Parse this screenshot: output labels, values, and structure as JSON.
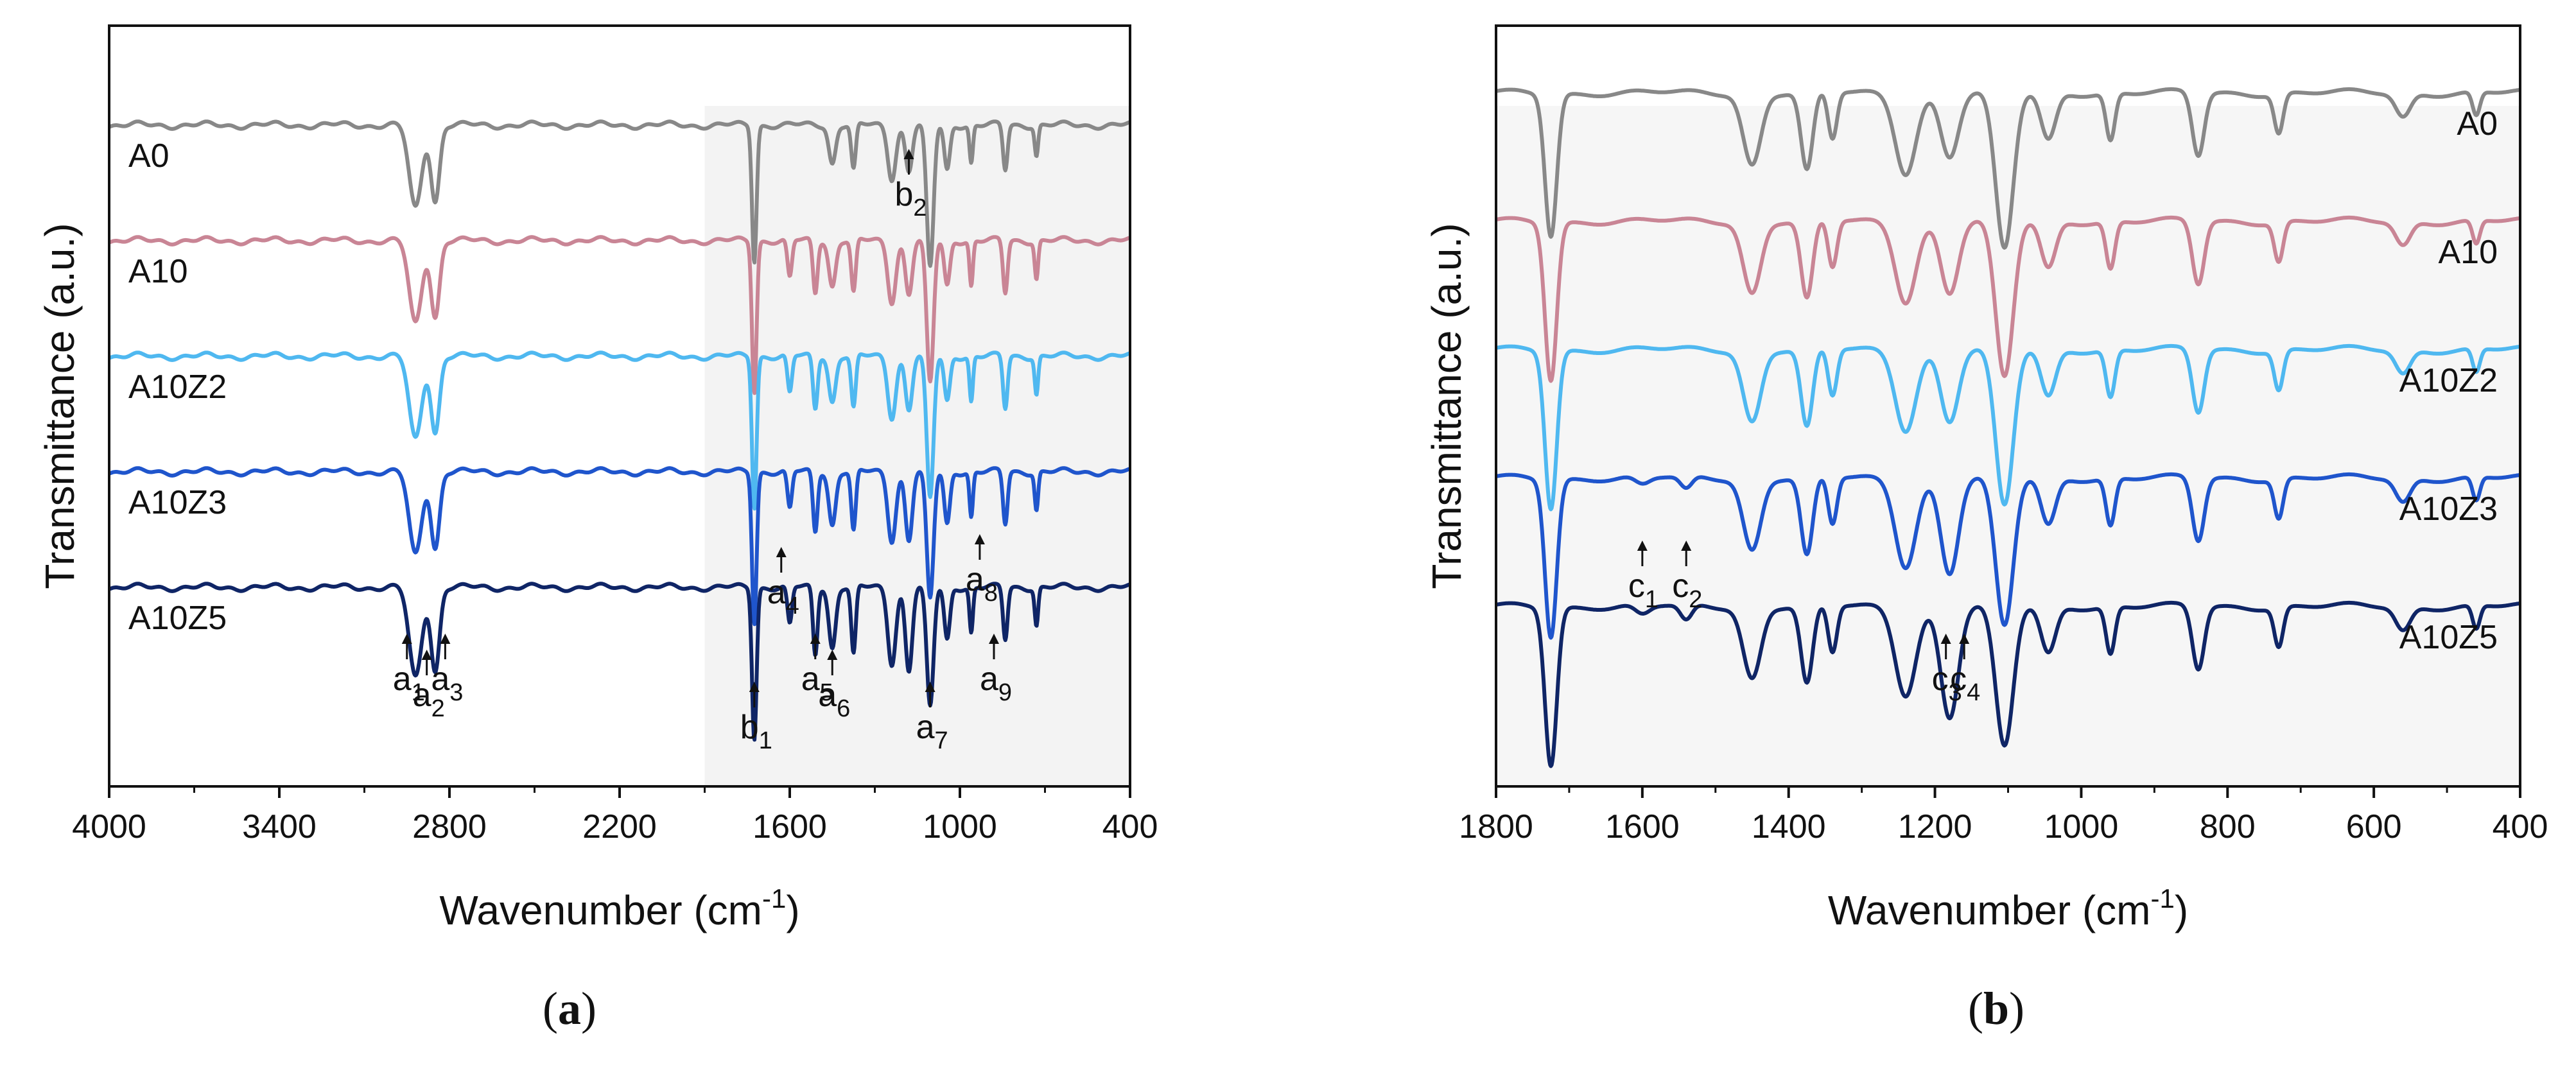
{
  "figure": {
    "panel_labels": [
      {
        "open": "(",
        "letter": "a",
        "close": ")"
      },
      {
        "open": "(",
        "letter": "b",
        "close": ")"
      }
    ]
  },
  "chart_data": [
    {
      "type": "line",
      "panel": "a",
      "title": "",
      "xlabel": "Wavenumber (cm",
      "xlabel_sup": "-1",
      "xlabel_end": ")",
      "ylabel": "Transmittance (a.u.)",
      "xlim": [
        4000,
        400
      ],
      "x_reversed": true,
      "xticks": [
        4000,
        3400,
        2800,
        2200,
        1600,
        1000,
        400
      ],
      "shaded_region": [
        1900,
        400
      ],
      "series": [
        {
          "name": "A0",
          "color": "#888888",
          "offset": 0,
          "bands": [
            [
              2920,
              22,
              0.55
            ],
            [
              2850,
              15,
              0.5
            ],
            [
              1725,
              8,
              0.9
            ],
            [
              1450,
              12,
              0.25
            ],
            [
              1375,
              8,
              0.3
            ],
            [
              1240,
              14,
              0.35
            ],
            [
              1180,
              12,
              0.3
            ],
            [
              1105,
              12,
              0.95
            ],
            [
              1045,
              10,
              0.3
            ],
            [
              960,
              6,
              0.25
            ],
            [
              840,
              8,
              0.3
            ],
            [
              730,
              6,
              0.2
            ]
          ]
        },
        {
          "name": "A10",
          "color": "#c98595",
          "offset": 1,
          "bands": [
            [
              2920,
              22,
              0.55
            ],
            [
              2850,
              15,
              0.5
            ],
            [
              1725,
              8,
              1.0
            ],
            [
              1600,
              8,
              0.25
            ],
            [
              1510,
              8,
              0.35
            ],
            [
              1450,
              12,
              0.3
            ],
            [
              1375,
              8,
              0.35
            ],
            [
              1240,
              14,
              0.4
            ],
            [
              1180,
              12,
              0.35
            ],
            [
              1105,
              12,
              0.95
            ],
            [
              1045,
              10,
              0.3
            ],
            [
              960,
              6,
              0.3
            ],
            [
              840,
              8,
              0.35
            ],
            [
              730,
              6,
              0.25
            ]
          ]
        },
        {
          "name": "A10Z2",
          "color": "#4fb8f0",
          "offset": 2,
          "bands": [
            [
              2920,
              22,
              0.55
            ],
            [
              2850,
              15,
              0.5
            ],
            [
              1725,
              8,
              1.0
            ],
            [
              1600,
              8,
              0.25
            ],
            [
              1510,
              8,
              0.35
            ],
            [
              1450,
              12,
              0.3
            ],
            [
              1375,
              8,
              0.35
            ],
            [
              1240,
              14,
              0.4
            ],
            [
              1180,
              12,
              0.35
            ],
            [
              1105,
              12,
              0.95
            ],
            [
              1045,
              10,
              0.3
            ],
            [
              960,
              6,
              0.3
            ],
            [
              840,
              8,
              0.35
            ],
            [
              730,
              6,
              0.25
            ]
          ]
        },
        {
          "name": "A10Z3",
          "color": "#1f55cc",
          "offset": 3,
          "bands": [
            [
              2920,
              22,
              0.55
            ],
            [
              2850,
              15,
              0.5
            ],
            [
              1725,
              8,
              1.0
            ],
            [
              1600,
              8,
              0.25
            ],
            [
              1510,
              8,
              0.4
            ],
            [
              1450,
              12,
              0.35
            ],
            [
              1375,
              8,
              0.4
            ],
            [
              1240,
              14,
              0.45
            ],
            [
              1180,
              12,
              0.45
            ],
            [
              1105,
              12,
              0.85
            ],
            [
              1045,
              10,
              0.35
            ],
            [
              960,
              6,
              0.3
            ],
            [
              840,
              8,
              0.35
            ],
            [
              730,
              6,
              0.25
            ]
          ]
        },
        {
          "name": "A10Z5",
          "color": "#0f2566",
          "offset": 4,
          "bands": [
            [
              2920,
              22,
              0.6
            ],
            [
              2850,
              15,
              0.55
            ],
            [
              1725,
              8,
              1.0
            ],
            [
              1600,
              8,
              0.25
            ],
            [
              1510,
              8,
              0.45
            ],
            [
              1450,
              12,
              0.4
            ],
            [
              1375,
              8,
              0.45
            ],
            [
              1240,
              14,
              0.5
            ],
            [
              1180,
              12,
              0.55
            ],
            [
              1105,
              12,
              0.8
            ],
            [
              1045,
              10,
              0.35
            ],
            [
              960,
              6,
              0.3
            ],
            [
              840,
              8,
              0.35
            ],
            [
              730,
              6,
              0.25
            ]
          ]
        }
      ],
      "annotations": [
        {
          "base": "a",
          "sub": "1",
          "x": 2950,
          "row": "low"
        },
        {
          "base": "a",
          "sub": "2",
          "x": 2880,
          "row": "lower"
        },
        {
          "base": "a",
          "sub": "3",
          "x": 2815,
          "row": "low"
        },
        {
          "base": "b",
          "sub": "1",
          "x": 1725,
          "row": "lowest"
        },
        {
          "base": "a",
          "sub": "4",
          "x": 1630,
          "row": "mid"
        },
        {
          "base": "a",
          "sub": "5",
          "x": 1510,
          "row": "low"
        },
        {
          "base": "a",
          "sub": "6",
          "x": 1450,
          "row": "lower"
        },
        {
          "base": "a",
          "sub": "7",
          "x": 1105,
          "row": "lowest"
        },
        {
          "base": "a",
          "sub": "8",
          "x": 930,
          "row": "mid2"
        },
        {
          "base": "a",
          "sub": "9",
          "x": 880,
          "row": "low"
        },
        {
          "base": "b",
          "sub": "2",
          "x": 1180,
          "row": "top"
        }
      ]
    },
    {
      "type": "line",
      "panel": "b",
      "title": "",
      "xlabel": "Wavenumber (cm",
      "xlabel_sup": "-1",
      "xlabel_end": ")",
      "ylabel": "Transmittance (a.u.)",
      "xlim": [
        1800,
        400
      ],
      "x_reversed": true,
      "xticks": [
        1800,
        1600,
        1400,
        1200,
        1000,
        800,
        600,
        400
      ],
      "series": [
        {
          "name": "A0",
          "color": "#888888",
          "offset": 0,
          "bands": [
            [
              1725,
              8,
              0.9
            ],
            [
              1450,
              12,
              0.45
            ],
            [
              1375,
              8,
              0.5
            ],
            [
              1340,
              6,
              0.3
            ],
            [
              1240,
              14,
              0.5
            ],
            [
              1180,
              12,
              0.4
            ],
            [
              1105,
              12,
              1.0
            ],
            [
              1045,
              10,
              0.3
            ],
            [
              960,
              6,
              0.3
            ],
            [
              840,
              8,
              0.4
            ],
            [
              730,
              6,
              0.25
            ],
            [
              560,
              10,
              0.15
            ],
            [
              460,
              5,
              0.15
            ]
          ]
        },
        {
          "name": "A10",
          "color": "#c98595",
          "offset": 1,
          "bands": [
            [
              1725,
              8,
              1.0
            ],
            [
              1450,
              12,
              0.45
            ],
            [
              1375,
              8,
              0.5
            ],
            [
              1340,
              6,
              0.3
            ],
            [
              1240,
              14,
              0.5
            ],
            [
              1180,
              12,
              0.45
            ],
            [
              1105,
              12,
              1.0
            ],
            [
              1045,
              10,
              0.3
            ],
            [
              960,
              6,
              0.3
            ],
            [
              840,
              8,
              0.4
            ],
            [
              730,
              6,
              0.25
            ],
            [
              560,
              10,
              0.15
            ],
            [
              460,
              5,
              0.15
            ]
          ]
        },
        {
          "name": "A10Z2",
          "color": "#4fb8f0",
          "offset": 2,
          "bands": [
            [
              1725,
              8,
              1.0
            ],
            [
              1450,
              12,
              0.45
            ],
            [
              1375,
              8,
              0.5
            ],
            [
              1340,
              6,
              0.3
            ],
            [
              1240,
              14,
              0.5
            ],
            [
              1180,
              12,
              0.45
            ],
            [
              1105,
              12,
              1.0
            ],
            [
              1045,
              10,
              0.3
            ],
            [
              960,
              6,
              0.3
            ],
            [
              840,
              8,
              0.4
            ],
            [
              730,
              6,
              0.25
            ],
            [
              560,
              10,
              0.15
            ],
            [
              460,
              5,
              0.15
            ]
          ]
        },
        {
          "name": "A10Z3",
          "color": "#1f55cc",
          "offset": 3,
          "bands": [
            [
              1725,
              8,
              1.0
            ],
            [
              1600,
              10,
              0.05
            ],
            [
              1540,
              8,
              0.08
            ],
            [
              1450,
              12,
              0.45
            ],
            [
              1375,
              8,
              0.5
            ],
            [
              1340,
              6,
              0.3
            ],
            [
              1240,
              14,
              0.55
            ],
            [
              1180,
              12,
              0.6
            ],
            [
              1105,
              12,
              0.95
            ],
            [
              1045,
              10,
              0.3
            ],
            [
              960,
              6,
              0.3
            ],
            [
              840,
              8,
              0.4
            ],
            [
              730,
              6,
              0.25
            ],
            [
              560,
              10,
              0.15
            ],
            [
              460,
              5,
              0.15
            ]
          ]
        },
        {
          "name": "A10Z5",
          "color": "#0f2566",
          "offset": 4,
          "bands": [
            [
              1725,
              8,
              1.0
            ],
            [
              1600,
              10,
              0.06
            ],
            [
              1540,
              8,
              0.1
            ],
            [
              1450,
              12,
              0.45
            ],
            [
              1375,
              8,
              0.5
            ],
            [
              1340,
              6,
              0.3
            ],
            [
              1240,
              14,
              0.55
            ],
            [
              1180,
              12,
              0.7
            ],
            [
              1105,
              12,
              0.9
            ],
            [
              1045,
              10,
              0.3
            ],
            [
              960,
              6,
              0.3
            ],
            [
              840,
              8,
              0.4
            ],
            [
              730,
              6,
              0.25
            ],
            [
              560,
              10,
              0.15
            ],
            [
              460,
              5,
              0.15
            ]
          ]
        }
      ],
      "annotations": [
        {
          "base": "c",
          "sub": "1",
          "x": 1600,
          "row": "mid"
        },
        {
          "base": "c",
          "sub": "2",
          "x": 1540,
          "row": "mid"
        },
        {
          "base": "c",
          "sub": "3",
          "x": 1185,
          "row": "low"
        },
        {
          "base": "c",
          "sub": "4",
          "x": 1160,
          "row": "low"
        }
      ]
    }
  ]
}
